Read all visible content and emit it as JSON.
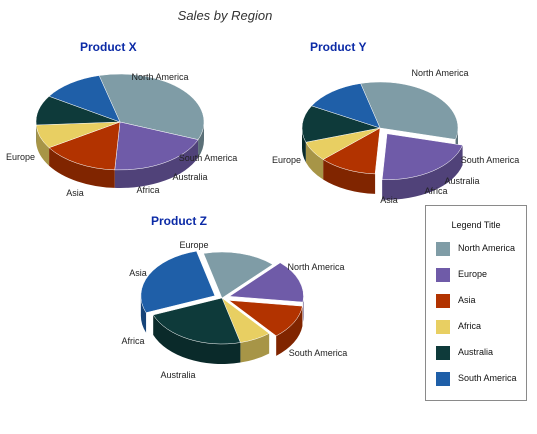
{
  "title": "Sales by Region",
  "legend": {
    "title": "Legend Title",
    "items": [
      {
        "label": "North America",
        "color": "#7f9ca6"
      },
      {
        "label": "Europe",
        "color": "#6f5ba8"
      },
      {
        "label": "Asia",
        "color": "#b23300"
      },
      {
        "label": "Africa",
        "color": "#e8cf62"
      },
      {
        "label": "Australia",
        "color": "#0e3a3a"
      },
      {
        "label": "South America",
        "color": "#1f5fa8"
      }
    ]
  },
  "chart_data": [
    {
      "type": "pie",
      "title": "Product X",
      "categories": [
        "North America",
        "Europe",
        "Asia",
        "Africa",
        "Australia",
        "South America"
      ],
      "values": [
        35,
        20,
        15,
        8,
        10,
        12
      ]
    },
    {
      "type": "pie",
      "title": "Product Y",
      "categories": [
        "North America",
        "Europe",
        "Asia",
        "Africa",
        "Australia",
        "South America"
      ],
      "values": [
        33,
        22,
        12,
        7,
        13,
        13
      ]
    },
    {
      "type": "pie",
      "title": "Product Z",
      "categories": [
        "North America",
        "Europe",
        "Asia",
        "Africa",
        "Australia",
        "South America"
      ],
      "values": [
        16,
        15,
        12,
        7,
        23,
        27
      ]
    }
  ]
}
